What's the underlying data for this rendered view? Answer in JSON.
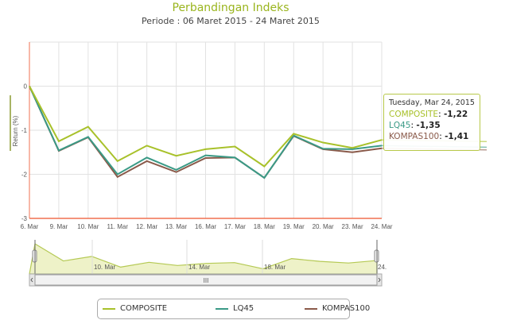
{
  "chart_data": {
    "type": "line",
    "title": "Perbandingan Indeks",
    "subtitle": "Periode : 06 Maret 2015 - 24 Maret 2015",
    "ylabel": "Return (%)",
    "ylim": [
      -3,
      1
    ],
    "yticks": [
      0,
      -1,
      -2,
      -3
    ],
    "ytick_labels": [
      "0",
      "-1",
      "-2",
      "-3"
    ],
    "categories": [
      "6. Mar",
      "9. Mar",
      "10. Mar",
      "11. Mar",
      "12. Mar",
      "13. Mar",
      "16. Mar",
      "17. Mar",
      "18. Mar",
      "19. Mar",
      "20. Mar",
      "23. Mar",
      "24. Mar"
    ],
    "grid": true,
    "legend": "bottom",
    "series": [
      {
        "name": "COMPOSITE",
        "color": "#a8c12a",
        "values": [
          0,
          -1.25,
          -0.92,
          -1.7,
          -1.35,
          -1.58,
          -1.43,
          -1.37,
          -1.82,
          -1.08,
          -1.28,
          -1.4,
          -1.22
        ]
      },
      {
        "name": "LQ45",
        "color": "#3a9a86",
        "values": [
          0,
          -1.46,
          -1.15,
          -2.0,
          -1.62,
          -1.9,
          -1.57,
          -1.62,
          -2.08,
          -1.12,
          -1.42,
          -1.43,
          -1.35
        ]
      },
      {
        "name": "KOMPAS100",
        "color": "#8a5a4a",
        "values": [
          0,
          -1.47,
          -1.16,
          -2.06,
          -1.7,
          -1.95,
          -1.63,
          -1.62,
          -2.08,
          -1.13,
          -1.43,
          -1.5,
          -1.41
        ]
      }
    ],
    "navigator_labels": [
      "10. Mar",
      "14. Mar",
      "18. Mar",
      "24."
    ]
  },
  "tooltip": {
    "date": "Tuesday, Mar 24, 2015",
    "items": [
      {
        "name": "COMPOSITE",
        "value": "-1,22"
      },
      {
        "name": "LQ45",
        "value": "-1,35"
      },
      {
        "name": "KOMPAS100",
        "value": "-1,41"
      }
    ]
  },
  "scrollbar": {
    "grip": "III"
  }
}
